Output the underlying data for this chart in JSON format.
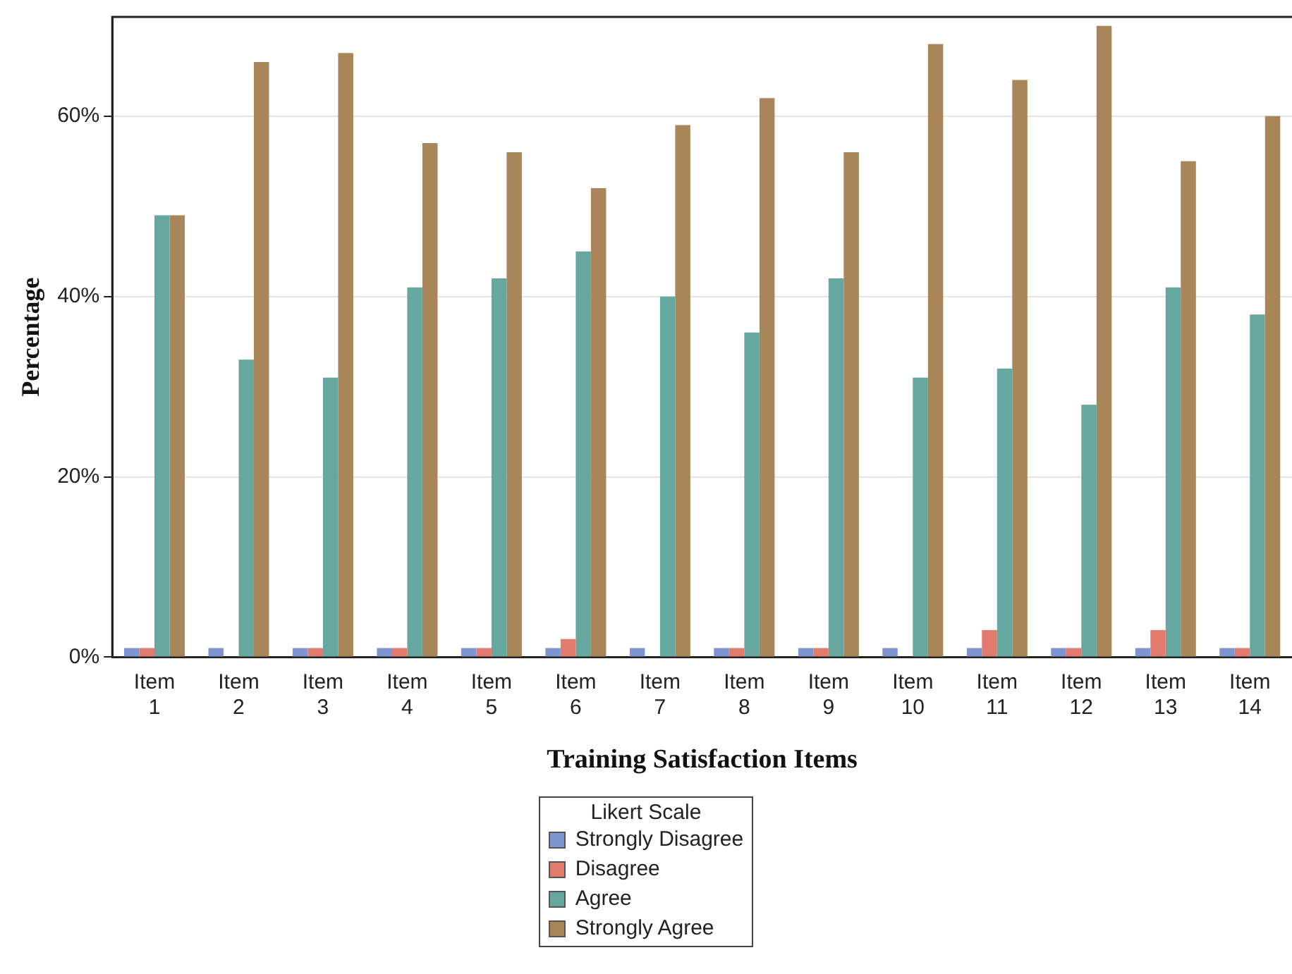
{
  "chart_data": {
    "type": "bar",
    "xlabel": "Training Satisfaction Items",
    "ylabel": "Percentage",
    "legend_title": "Likert Scale",
    "legend": "bottom",
    "grid": "y",
    "categories": [
      "Item 1",
      "Item 2",
      "Item 3",
      "Item 4",
      "Item 5",
      "Item 6",
      "Item 7",
      "Item 8",
      "Item 9",
      "Item 10",
      "Item 11",
      "Item 12",
      "Item 13",
      "Item 14"
    ],
    "ylim": [
      0,
      71
    ],
    "yticks": [
      {
        "value": 0,
        "label": "0%"
      },
      {
        "value": 20,
        "label": "20%"
      },
      {
        "value": 40,
        "label": "40%"
      },
      {
        "value": 60,
        "label": "60%"
      }
    ],
    "series": [
      {
        "name": "Strongly Disagree",
        "color": "#7f95d1",
        "values": [
          1,
          1,
          1,
          1,
          1,
          1,
          1,
          1,
          1,
          1,
          1,
          1,
          1,
          1
        ]
      },
      {
        "name": "Disagree",
        "color": "#e07b6e",
        "values": [
          1,
          0,
          1,
          1,
          1,
          2,
          0,
          1,
          1,
          0,
          3,
          1,
          3,
          1
        ]
      },
      {
        "name": "Agree",
        "color": "#66a8a0",
        "values": [
          49,
          33,
          31,
          41,
          42,
          45,
          40,
          36,
          42,
          31,
          32,
          28,
          41,
          38
        ]
      },
      {
        "name": "Strongly Agree",
        "color": "#a8865a",
        "values": [
          49,
          66,
          67,
          57,
          56,
          52,
          59,
          62,
          56,
          68,
          64,
          70,
          55,
          60
        ]
      }
    ]
  }
}
